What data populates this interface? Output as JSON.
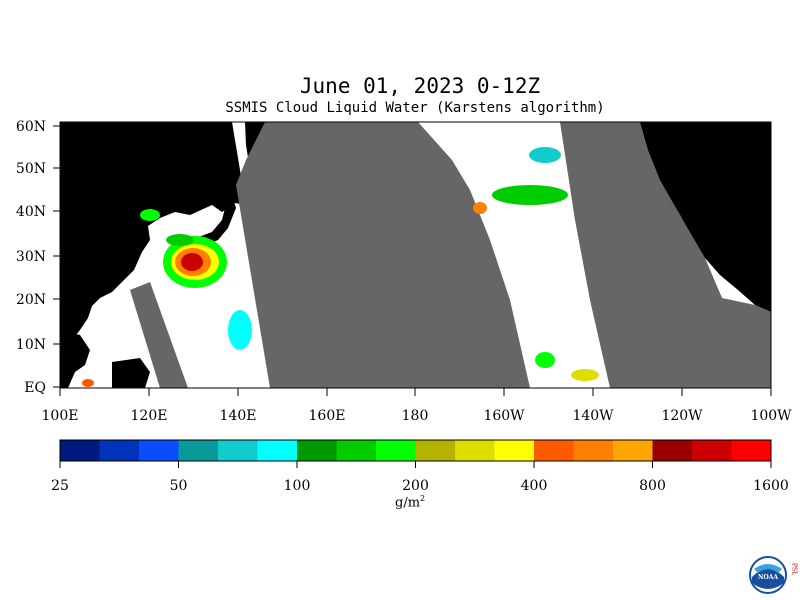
{
  "header": {
    "title": "June 01, 2023 0-12Z",
    "subtitle": "SSMIS Cloud Liquid Water (Karstens algorithm)"
  },
  "map": {
    "lat_labels": [
      "60N",
      "50N",
      "40N",
      "30N",
      "20N",
      "10N",
      "EQ"
    ],
    "lon_labels": [
      "100E",
      "120E",
      "140E",
      "160E",
      "180",
      "160W",
      "140W",
      "120W",
      "100W"
    ],
    "colors": {
      "land": "#000000",
      "no_data": "#666666",
      "ocean_clear": "#ffffff"
    }
  },
  "colorbar": {
    "colors": [
      "#001a80",
      "#0033bb",
      "#0a4cff",
      "#0a9999",
      "#10cccc",
      "#00ffff",
      "#009900",
      "#00cc00",
      "#00ff00",
      "#b3b300",
      "#dddd00",
      "#ffff00",
      "#ff5a00",
      "#ff8000",
      "#ffa600",
      "#990000",
      "#cc0000",
      "#ff0000"
    ],
    "tick_labels": [
      "25",
      "50",
      "100",
      "200",
      "400",
      "800",
      "1600"
    ],
    "units_base": "g/m",
    "units_exp": "2"
  },
  "logo": {
    "text": "NOAA",
    "side_text": "PSL"
  }
}
